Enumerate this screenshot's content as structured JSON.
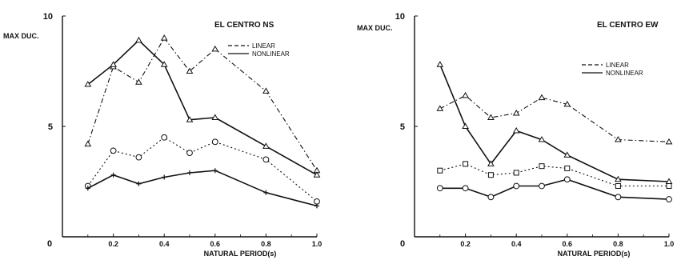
{
  "chart_data": [
    {
      "type": "line",
      "title": "EL CENTRO  NS",
      "xlabel": "NATURAL PERIOD(s)",
      "ylabel": "MAX DUC.",
      "xlim": [
        0,
        1.0
      ],
      "ylim": [
        0,
        10
      ],
      "x_ticks": [
        "0",
        "0.2",
        "0.4",
        "0.6",
        "0.8",
        "1.0"
      ],
      "y_ticks": [
        "5",
        "10"
      ],
      "legend": [
        "LINEAR",
        "NONLINEAR"
      ],
      "series": [
        {
          "name": "LINEAR",
          "style": "dashed",
          "marker": "triangle",
          "x": [
            0.1,
            0.2,
            0.3,
            0.4,
            0.5,
            0.6,
            0.8,
            1.0
          ],
          "y": [
            4.2,
            7.7,
            7.0,
            9.0,
            7.5,
            8.5,
            6.6,
            3.0
          ]
        },
        {
          "name": "NONLINEAR",
          "style": "solid",
          "marker": "triangle",
          "x": [
            0.1,
            0.2,
            0.3,
            0.4,
            0.5,
            0.6,
            0.8,
            1.0
          ],
          "y": [
            6.9,
            7.8,
            8.9,
            7.8,
            5.3,
            5.4,
            4.1,
            2.8
          ]
        },
        {
          "name": "",
          "style": "dashed",
          "marker": "circle",
          "x": [
            0.1,
            0.2,
            0.3,
            0.4,
            0.5,
            0.6,
            0.8,
            1.0
          ],
          "y": [
            2.3,
            3.9,
            3.6,
            4.5,
            3.8,
            4.3,
            3.5,
            1.6
          ]
        },
        {
          "name": "",
          "style": "solid",
          "marker": "cross",
          "x": [
            0.1,
            0.2,
            0.3,
            0.4,
            0.5,
            0.6,
            0.8,
            1.0
          ],
          "y": [
            2.2,
            2.8,
            2.4,
            2.7,
            2.9,
            3.0,
            2.0,
            1.4
          ]
        }
      ]
    },
    {
      "type": "line",
      "title": "EL CENTRO  EW",
      "xlabel": "NATURAL PERIOD(s)",
      "ylabel": "MAX DUC.",
      "xlim": [
        0,
        1.0
      ],
      "ylim": [
        0,
        10
      ],
      "x_ticks": [
        "0",
        "0.2",
        "0.4",
        "0.6",
        "0.8",
        "1.0"
      ],
      "y_ticks": [
        "5",
        "10"
      ],
      "legend": [
        "LINEAR",
        "NONLINEAR"
      ],
      "series": [
        {
          "name": "LINEAR",
          "style": "dashed",
          "marker": "triangle",
          "x": [
            0.1,
            0.2,
            0.3,
            0.4,
            0.5,
            0.6,
            0.8,
            1.0
          ],
          "y": [
            5.8,
            6.4,
            5.4,
            5.6,
            6.3,
            6.0,
            4.4,
            4.3
          ]
        },
        {
          "name": "NONLINEAR",
          "style": "solid",
          "marker": "triangle",
          "x": [
            0.1,
            0.2,
            0.3,
            0.4,
            0.5,
            0.6,
            0.8,
            1.0
          ],
          "y": [
            7.8,
            5.0,
            3.3,
            4.8,
            4.4,
            3.7,
            2.6,
            2.5
          ]
        },
        {
          "name": "",
          "style": "dashed",
          "marker": "square",
          "x": [
            0.1,
            0.2,
            0.3,
            0.4,
            0.5,
            0.6,
            0.8,
            1.0
          ],
          "y": [
            3.0,
            3.3,
            2.8,
            2.9,
            3.2,
            3.1,
            2.3,
            2.3
          ]
        },
        {
          "name": "",
          "style": "solid",
          "marker": "circle",
          "x": [
            0.1,
            0.2,
            0.3,
            0.4,
            0.5,
            0.6,
            0.8,
            1.0
          ],
          "y": [
            2.2,
            2.2,
            1.8,
            2.3,
            2.3,
            2.6,
            1.8,
            1.7
          ]
        }
      ]
    }
  ]
}
